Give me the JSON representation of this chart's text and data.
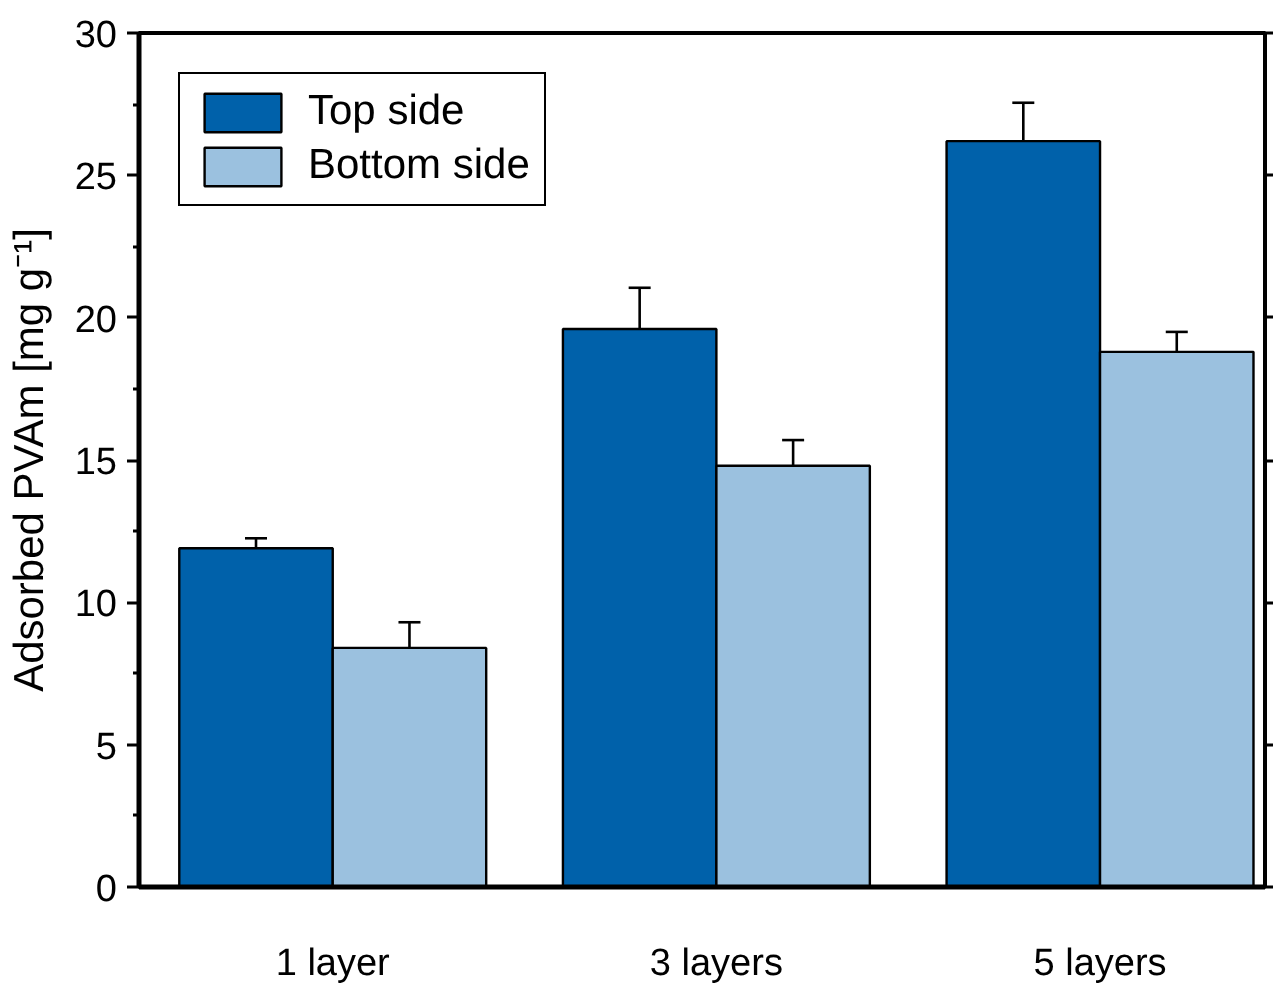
{
  "chart_data": {
    "type": "bar",
    "ylabel": "Adsorbed PVAm [mg g⁻¹]",
    "categories": [
      "1 layer",
      "3 layers",
      "5 layers"
    ],
    "series": [
      {
        "name": "Top side",
        "color": "#0061aa",
        "values": [
          11.9,
          19.6,
          26.2
        ],
        "errors": [
          0.35,
          1.45,
          1.35
        ]
      },
      {
        "name": "Bottom side",
        "color": "#9bc1df",
        "values": [
          8.4,
          14.8,
          18.8
        ],
        "errors": [
          0.9,
          0.9,
          0.7
        ]
      }
    ],
    "ylim": [
      0,
      30
    ],
    "yticks": [
      0,
      5,
      10,
      15,
      20,
      25,
      30
    ],
    "legend": "top left"
  }
}
